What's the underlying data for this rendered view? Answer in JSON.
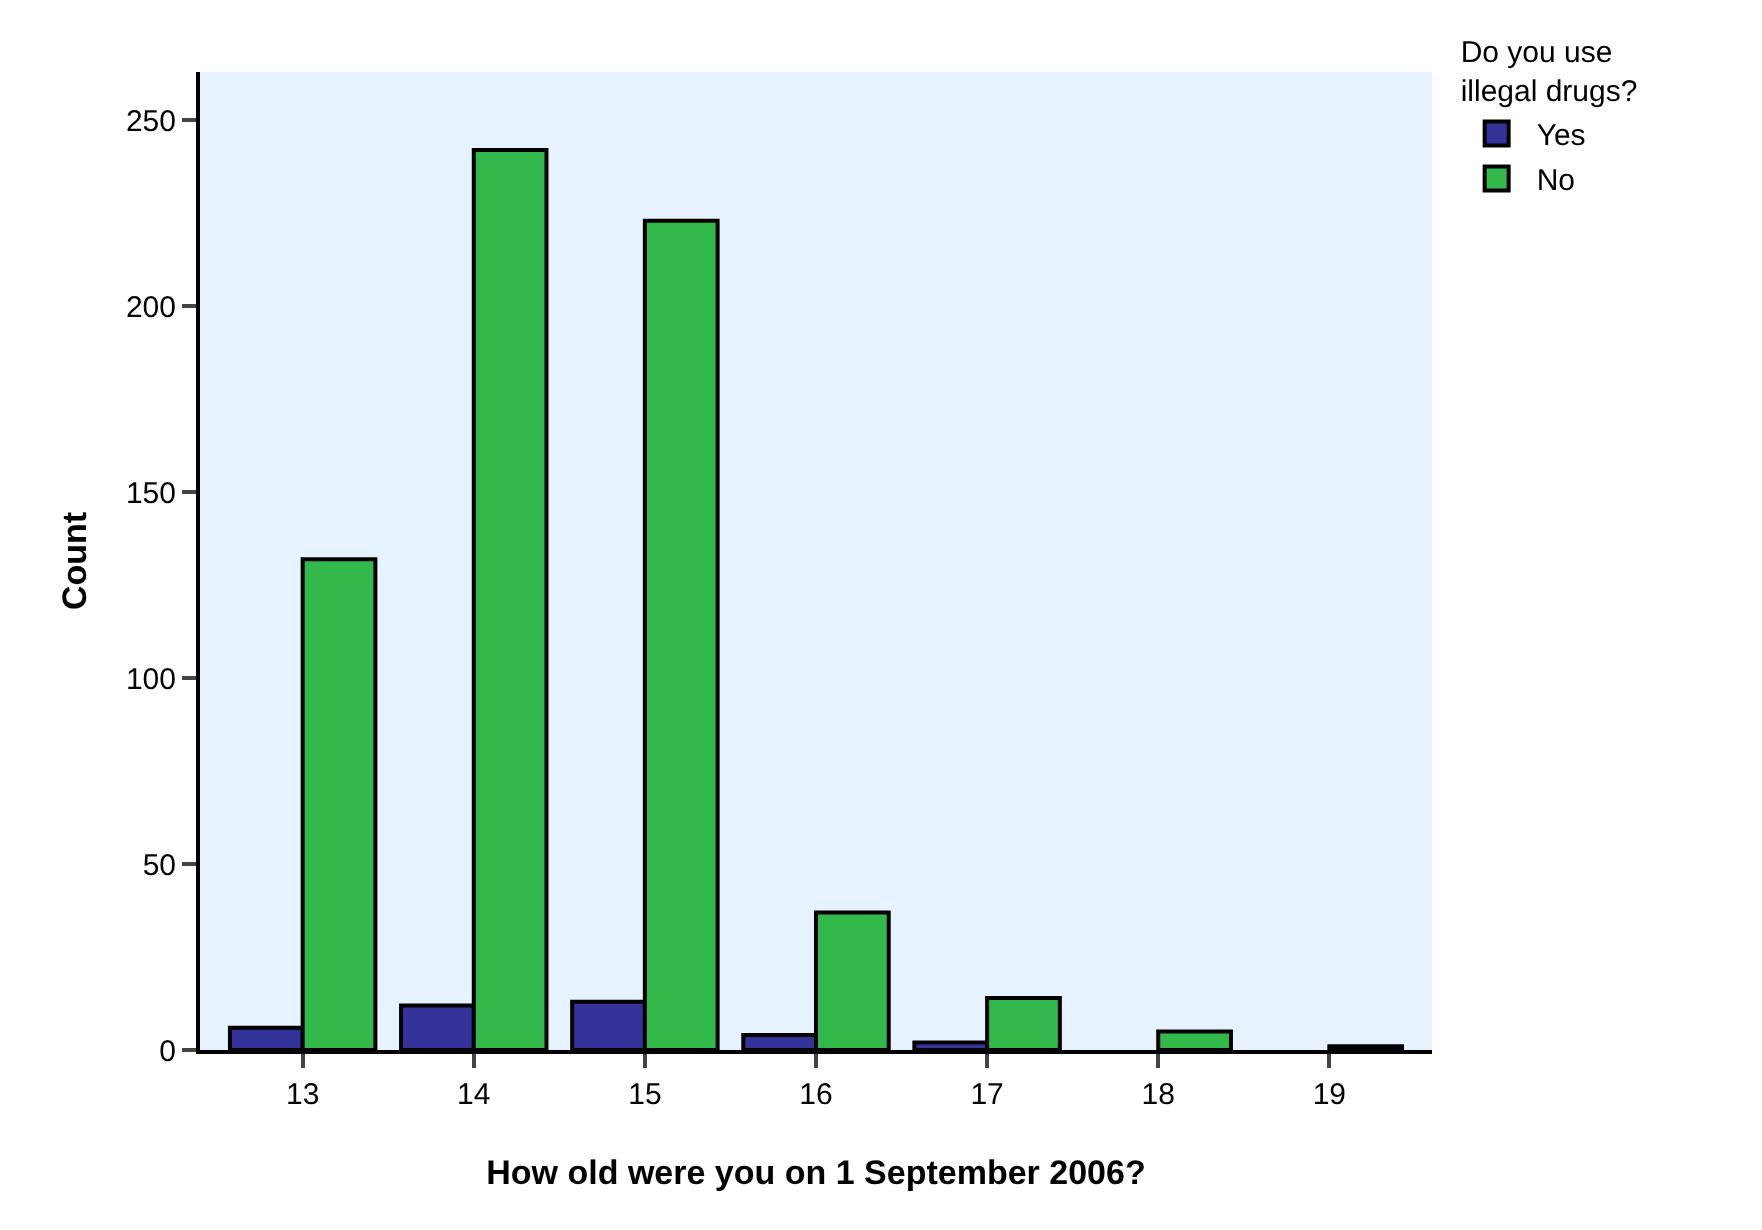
{
  "chart_data": {
    "type": "bar",
    "xlabel": "How old were you on 1 September 2006?",
    "ylabel": "Count",
    "legend_title": "Do you use illegal drugs?",
    "categories": [
      "13",
      "14",
      "15",
      "16",
      "17",
      "18",
      "19"
    ],
    "series": [
      {
        "name": "Yes",
        "color": "#333399",
        "values": [
          6,
          12,
          13,
          4,
          2,
          0,
          0
        ]
      },
      {
        "name": "No",
        "color": "#33b84a",
        "values": [
          132,
          242,
          223,
          37,
          14,
          5,
          1
        ]
      }
    ],
    "ylim": [
      0,
      263
    ],
    "yticks": [
      0,
      50,
      100,
      150,
      200,
      250
    ],
    "grid": false,
    "legend": "top right"
  }
}
